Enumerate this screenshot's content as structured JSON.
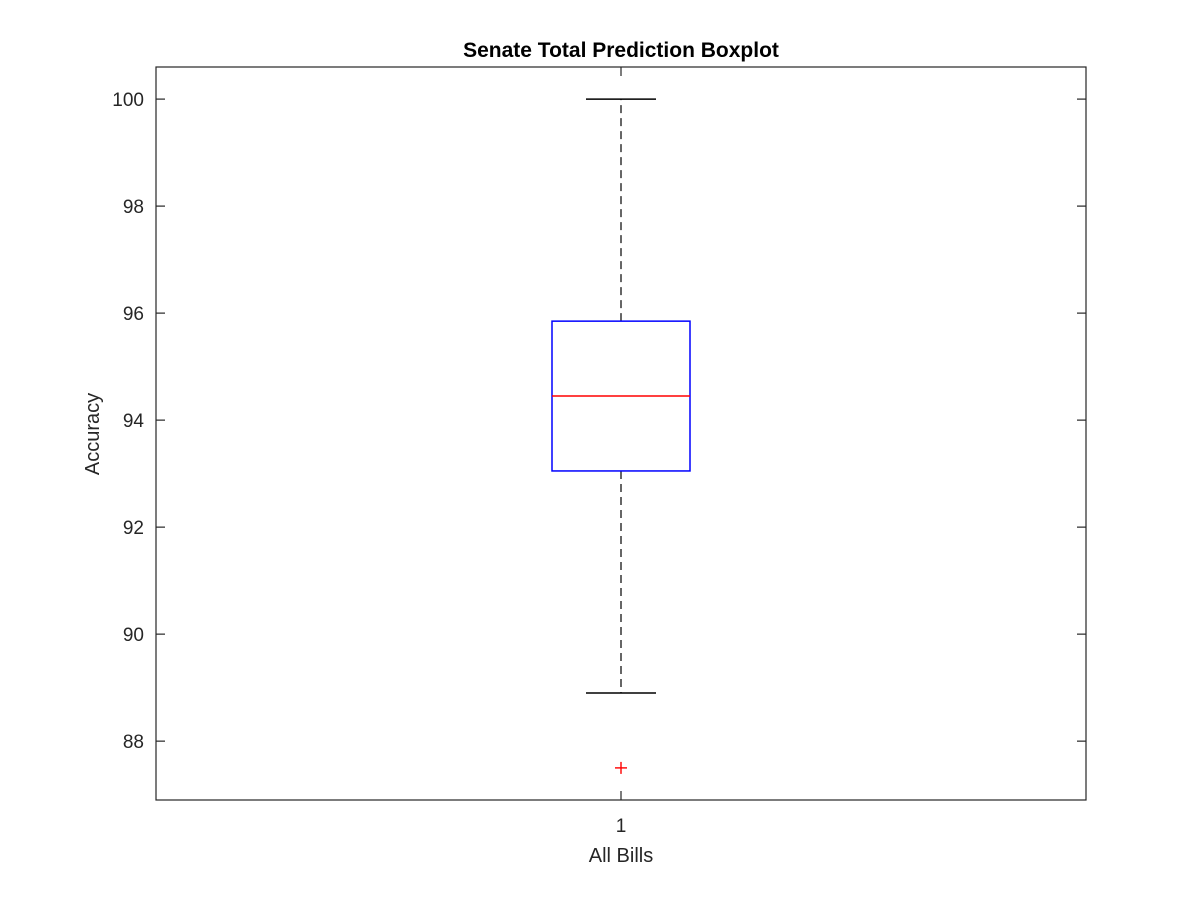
{
  "chart_data": {
    "type": "boxplot",
    "title": "Senate Total Prediction Boxplot",
    "xlabel": "All Bills",
    "ylabel": "Accuracy",
    "categories": [
      "1"
    ],
    "ylim": [
      86.9,
      100.6
    ],
    "yticks": [
      88,
      90,
      92,
      94,
      96,
      98,
      100
    ],
    "grid": false,
    "boxes": [
      {
        "category": "1",
        "whisker_low": 88.9,
        "q1": 93.05,
        "median": 94.45,
        "q3": 95.85,
        "whisker_high": 100,
        "outliers": [
          87.5
        ]
      }
    ],
    "colors": {
      "box": "#0000ff",
      "median": "#ff0000",
      "whisker": "#000000",
      "outlier": "#ff0000",
      "axes": "#262626"
    }
  }
}
